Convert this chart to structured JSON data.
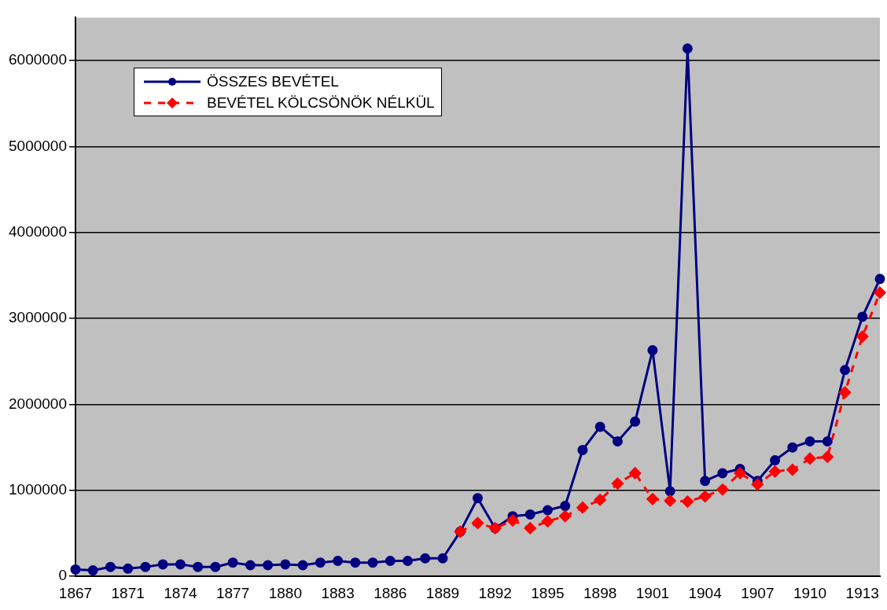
{
  "chart_data": {
    "type": "line",
    "categories": [
      "1867",
      null,
      null,
      "1871",
      null,
      null,
      "1874",
      null,
      null,
      "1877",
      null,
      null,
      "1880",
      null,
      null,
      "1883",
      null,
      null,
      "1886",
      null,
      null,
      "1889",
      null,
      null,
      "1892",
      null,
      null,
      "1895",
      null,
      null,
      "1898",
      null,
      null,
      "1901",
      null,
      null,
      "1904",
      null,
      null,
      "1907",
      null,
      null,
      "1910",
      null,
      null,
      "1913",
      null
    ],
    "series": [
      {
        "name": "ÖSSZES BEVÉTEL",
        "color": "#000080",
        "marker": "circle",
        "line_style": "solid",
        "values": [
          80000,
          70000,
          110000,
          90000,
          110000,
          140000,
          140000,
          110000,
          110000,
          160000,
          130000,
          130000,
          140000,
          130000,
          160000,
          180000,
          160000,
          160000,
          180000,
          180000,
          210000,
          210000,
          520000,
          910000,
          560000,
          700000,
          720000,
          770000,
          820000,
          1470000,
          1740000,
          1570000,
          1800000,
          2630000,
          990000,
          6140000,
          1110000,
          1200000,
          1250000,
          1110000,
          1350000,
          1500000,
          1570000,
          1570000,
          2400000,
          3020000,
          3460000
        ]
      },
      {
        "name": "BEVÉTEL KÖLCSÖNÖK NÉLKÜL",
        "color": "#ff0000",
        "marker": "diamond",
        "line_style": "dashed",
        "values": [
          null,
          null,
          null,
          null,
          null,
          null,
          null,
          null,
          null,
          null,
          null,
          null,
          null,
          null,
          null,
          null,
          null,
          null,
          null,
          null,
          null,
          null,
          520000,
          620000,
          560000,
          650000,
          560000,
          640000,
          700000,
          800000,
          890000,
          1080000,
          1200000,
          900000,
          880000,
          870000,
          930000,
          1010000,
          1200000,
          1070000,
          1220000,
          1240000,
          1370000,
          1390000,
          2140000,
          2790000,
          3300000
        ]
      }
    ],
    "ylim": [
      0,
      6500000
    ],
    "yticks": [
      0,
      1000000,
      2000000,
      3000000,
      4000000,
      5000000,
      6000000
    ],
    "grid": "y",
    "legend": "top left"
  }
}
